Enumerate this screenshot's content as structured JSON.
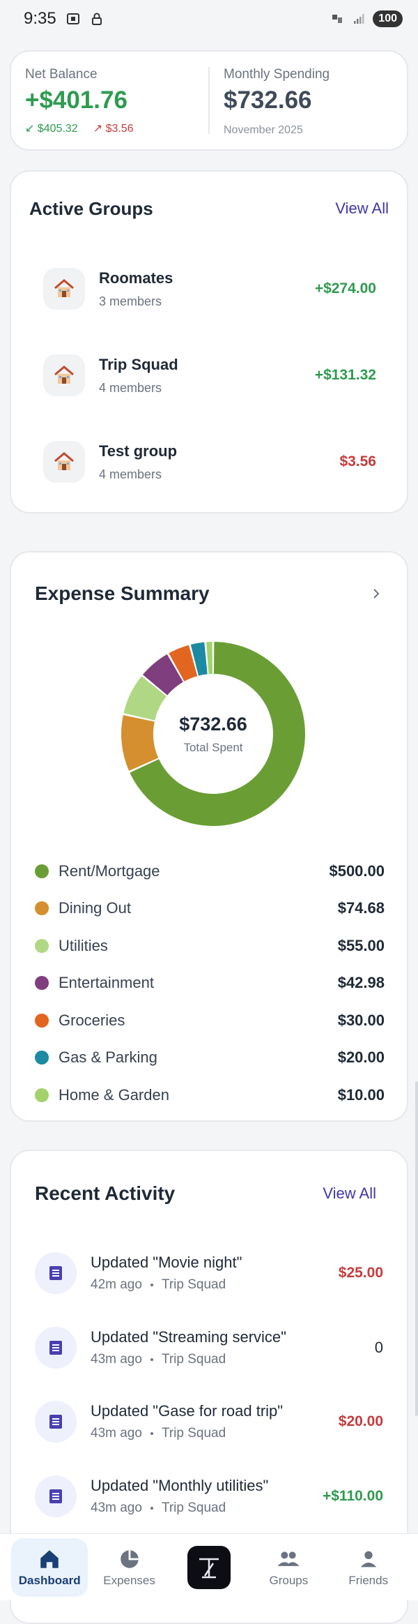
{
  "status_bar": {
    "time": "9:35",
    "battery": "100"
  },
  "balance": {
    "net_label": "Net Balance",
    "net_value": "+$401.76",
    "owed_to_you": "$405.32",
    "you_owe": "$3.56",
    "monthly_label": "Monthly Spending",
    "monthly_value": "$732.66",
    "month": "November 2025"
  },
  "groups": {
    "title": "Active Groups",
    "view_all": "View All",
    "items": [
      {
        "name": "Roomates",
        "members": "3 members",
        "amount": "+$274.00",
        "status": "positive"
      },
      {
        "name": "Trip Squad",
        "members": "4 members",
        "amount": "+$131.32",
        "status": "positive"
      },
      {
        "name": "Test group",
        "members": "4 members",
        "amount": "$3.56",
        "status": "negative"
      }
    ]
  },
  "summary": {
    "title": "Expense Summary",
    "total": "$732.66",
    "total_caption": "Total Spent",
    "categories": [
      {
        "label": "Rent/Mortgage",
        "value": "$500.00",
        "amount": 500.0,
        "color": "#6a9e35"
      },
      {
        "label": "Dining Out",
        "value": "$74.68",
        "amount": 74.68,
        "color": "#d58f2f"
      },
      {
        "label": "Utilities",
        "value": "$55.00",
        "amount": 55.0,
        "color": "#b0d884"
      },
      {
        "label": "Entertainment",
        "value": "$42.98",
        "amount": 42.98,
        "color": "#7f3e7e"
      },
      {
        "label": "Groceries",
        "value": "$30.00",
        "amount": 30.0,
        "color": "#e2661f"
      },
      {
        "label": "Gas & Parking",
        "value": "$20.00",
        "amount": 20.0,
        "color": "#1b8aa3"
      },
      {
        "label": "Home & Garden",
        "value": "$10.00",
        "amount": 10.0,
        "color": "#a3d26b"
      }
    ]
  },
  "activity": {
    "title": "Recent Activity",
    "view_all": "View All",
    "items": [
      {
        "title": "Updated \"Movie night\"",
        "time": "42m ago",
        "group": "Trip Squad",
        "amount": "$25.00",
        "status": "negative"
      },
      {
        "title": "Updated \"Streaming service\"",
        "time": "43m ago",
        "group": "Trip Squad",
        "amount": "0",
        "status": "neutral"
      },
      {
        "title": "Updated \"Gase for road trip\"",
        "time": "43m ago",
        "group": "Trip Squad",
        "amount": "$20.00",
        "status": "negative"
      },
      {
        "title": "Updated \"Monthly utilities\"",
        "time": "43m ago",
        "group": "Trip Squad",
        "amount": "+$110.00",
        "status": "positive"
      }
    ]
  },
  "nav": {
    "items": [
      {
        "label": "Dashboard",
        "icon": "home-icon",
        "active": true
      },
      {
        "label": "Expenses",
        "icon": "pie-chart-icon",
        "active": false
      },
      {
        "label": "",
        "icon": "app-logo-icon",
        "active": false
      },
      {
        "label": "Groups",
        "icon": "people-icon",
        "active": false
      },
      {
        "label": "Friends",
        "icon": "person-icon",
        "active": false
      }
    ]
  }
}
